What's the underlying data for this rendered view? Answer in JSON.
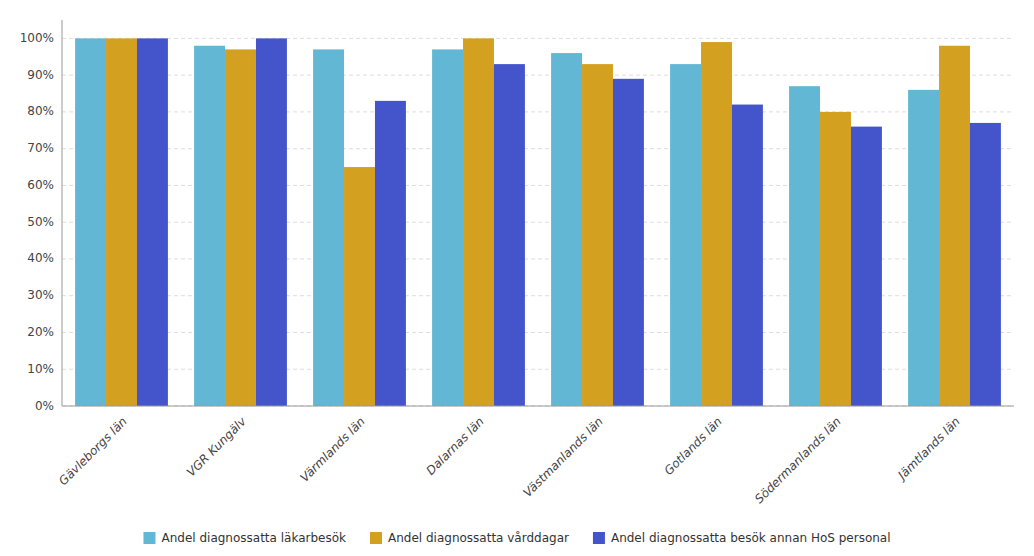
{
  "chart_data": {
    "type": "bar",
    "categories": [
      "Gävleborgs län",
      "VGR Kungälv",
      "Värmlands län",
      "Dalarnas län",
      "Västmanlands län",
      "Gotlands län",
      "Södermanlands län",
      "Jämtlands län"
    ],
    "series": [
      {
        "name": "Andel diagnossatta läkarbesök",
        "color": "#62b8d4",
        "values": [
          1.0,
          0.98,
          0.97,
          0.97,
          0.96,
          0.93,
          0.87,
          0.86
        ]
      },
      {
        "name": "Andel diagnossatta vårddagar",
        "color": "#d4a020",
        "values": [
          1.0,
          0.97,
          0.65,
          1.0,
          0.93,
          0.99,
          0.8,
          0.98
        ]
      },
      {
        "name": "Andel diagnossatta besök annan HoS personal",
        "color": "#4455cc",
        "values": [
          1.0,
          1.0,
          0.83,
          0.93,
          0.89,
          0.82,
          0.76,
          0.77
        ]
      }
    ],
    "ylim": [
      0,
      1.05
    ],
    "yticks": [
      {
        "value": 0.0,
        "label": "0%"
      },
      {
        "value": 0.1,
        "label": "10%"
      },
      {
        "value": 0.2,
        "label": "20%"
      },
      {
        "value": 0.3,
        "label": "30%"
      },
      {
        "value": 0.4,
        "label": "40%"
      },
      {
        "value": 0.5,
        "label": "50%"
      },
      {
        "value": 0.6,
        "label": "60%"
      },
      {
        "value": 0.7,
        "label": "70%"
      },
      {
        "value": 0.8,
        "label": "80%"
      },
      {
        "value": 0.9,
        "label": "90%"
      },
      {
        "value": 1.0,
        "label": "100%"
      }
    ],
    "grid": true,
    "legend": "bottom"
  }
}
